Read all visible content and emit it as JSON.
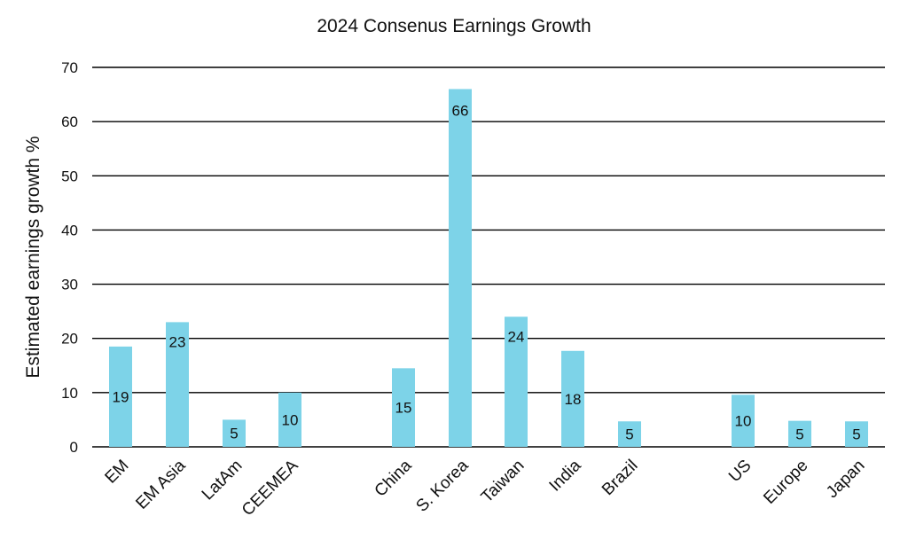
{
  "chart_data": {
    "type": "bar",
    "title": "2024 Consenus Earnings Growth",
    "xlabel": "",
    "ylabel": "Estimated earnings growth %",
    "ylim": [
      0,
      70
    ],
    "yticks": [
      0,
      10,
      20,
      30,
      40,
      50,
      60,
      70
    ],
    "grid": true,
    "bar_color": "#7dd3e8",
    "categories": [
      "EM",
      "EM Asia",
      "LatAm",
      "CEEMEA",
      "China",
      "S. Korea",
      "Taiwan",
      "India",
      "Brazil",
      "US",
      "Europe",
      "Japan"
    ],
    "values": [
      18.5,
      23,
      5,
      10,
      14.5,
      66,
      24,
      17.7,
      4.7,
      9.6,
      4.8,
      4.7
    ],
    "data_labels": [
      "19",
      "23",
      "5",
      "10",
      "15",
      "66",
      "24",
      "18",
      "5",
      "10",
      "5",
      "5"
    ]
  }
}
